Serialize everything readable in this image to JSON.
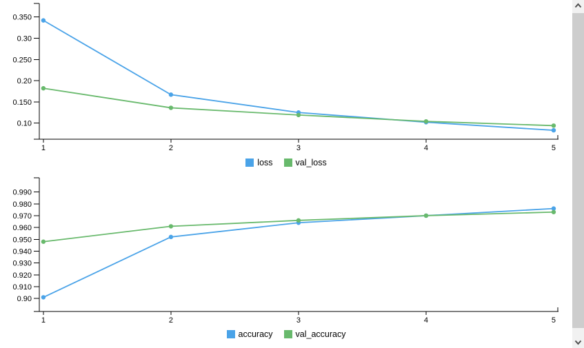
{
  "window": {
    "background": "#ffffff"
  },
  "icons": {
    "scroll_up": "chevron-up",
    "scroll_down": "chevron-down"
  },
  "scrollbar": {
    "track": "#f1f1f1",
    "thumb": "#cdcdcd",
    "arrow": "#505050"
  },
  "chart_data": [
    {
      "type": "line",
      "title": "",
      "xlabel": "",
      "ylabel": "",
      "x": [
        1,
        2,
        3,
        4,
        5
      ],
      "xticks": [
        "1",
        "2",
        "3",
        "4",
        "5"
      ],
      "series": [
        {
          "name": "loss",
          "color": "#4AA3E8",
          "values": [
            0.342,
            0.167,
            0.125,
            0.102,
            0.083
          ]
        },
        {
          "name": "val_loss",
          "color": "#68B96C",
          "values": [
            0.182,
            0.136,
            0.119,
            0.104,
            0.094
          ]
        }
      ],
      "yticks": [
        {
          "v": 0.35,
          "label": "0.350"
        },
        {
          "v": 0.3,
          "label": "0.30"
        },
        {
          "v": 0.25,
          "label": "0.250"
        },
        {
          "v": 0.2,
          "label": "0.20"
        },
        {
          "v": 0.15,
          "label": "0.150"
        },
        {
          "v": 0.1,
          "label": "0.10"
        }
      ],
      "xlim": [
        0.968,
        5.038
      ],
      "ylim": [
        0.062,
        0.382
      ],
      "grid": false,
      "markers": true,
      "legend_position": "bottom"
    },
    {
      "type": "line",
      "title": "",
      "xlabel": "",
      "ylabel": "",
      "x": [
        1,
        2,
        3,
        4,
        5
      ],
      "xticks": [
        "1",
        "2",
        "3",
        "4",
        "5"
      ],
      "series": [
        {
          "name": "accuracy",
          "color": "#4AA3E8",
          "values": [
            0.901,
            0.952,
            0.964,
            0.97,
            0.976
          ]
        },
        {
          "name": "val_accuracy",
          "color": "#68B96C",
          "values": [
            0.948,
            0.961,
            0.966,
            0.97,
            0.973
          ]
        }
      ],
      "yticks": [
        {
          "v": 0.99,
          "label": "0.990"
        },
        {
          "v": 0.98,
          "label": "0.980"
        },
        {
          "v": 0.97,
          "label": "0.970"
        },
        {
          "v": 0.96,
          "label": "0.960"
        },
        {
          "v": 0.95,
          "label": "0.950"
        },
        {
          "v": 0.94,
          "label": "0.940"
        },
        {
          "v": 0.93,
          "label": "0.930"
        },
        {
          "v": 0.92,
          "label": "0.920"
        },
        {
          "v": 0.91,
          "label": "0.910"
        },
        {
          "v": 0.9,
          "label": "0.90"
        }
      ],
      "xlim": [
        0.968,
        5.038
      ],
      "ylim": [
        0.889,
        1.002
      ],
      "grid": false,
      "markers": true,
      "legend_position": "bottom"
    }
  ]
}
